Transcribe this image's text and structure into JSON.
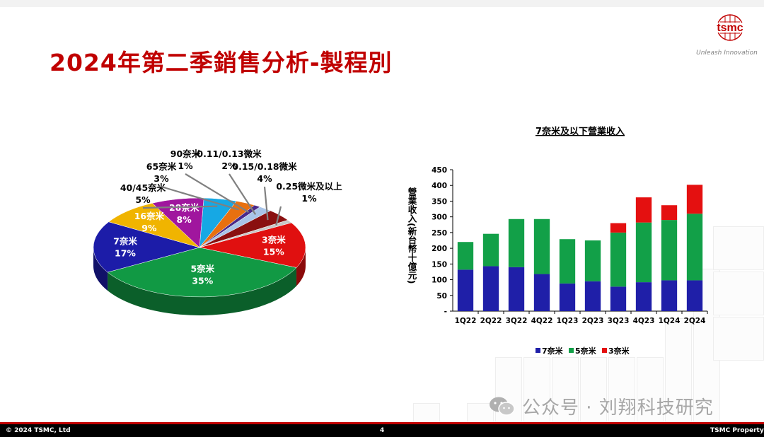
{
  "slide": {
    "title": "2024年第二季銷售分析-製程別",
    "logo_text": "tsmc",
    "tagline": "Unleash Innovation",
    "footer_left": "© 2024 TSMC, Ltd",
    "footer_page": "4",
    "footer_right": "TSMC Property",
    "watermark": "公众号 · 刘翔科技研究"
  },
  "colors": {
    "title_red": "#c00000",
    "n7": "#1f1fa8",
    "n5": "#12a048",
    "n3": "#e41010"
  },
  "chart_data": [
    {
      "type": "pie",
      "slices": [
        {
          "label": "3奈米",
          "value": 15,
          "pct": "15%",
          "color": "#e01010"
        },
        {
          "label": "5奈米",
          "value": 35,
          "pct": "35%",
          "color": "#119944"
        },
        {
          "label": "7奈米",
          "value": 17,
          "pct": "17%",
          "color": "#1c1ca8"
        },
        {
          "label": "16奈米",
          "value": 9,
          "pct": "9%",
          "color": "#f0b400"
        },
        {
          "label": "28奈米",
          "value": 8,
          "pct": "8%",
          "color": "#a0169e"
        },
        {
          "label": "40/45奈米",
          "value": 5,
          "pct": "5%",
          "color": "#16a8e4"
        },
        {
          "label": "65奈米",
          "value": 3,
          "pct": "3%",
          "color": "#e87010"
        },
        {
          "label": "90奈米",
          "value": 1,
          "pct": "1%",
          "color": "#4a2a8a"
        },
        {
          "label": "0.11/0.13微米",
          "value": 2,
          "pct": "2%",
          "color": "#a8c4e8"
        },
        {
          "label": "0.15/0.18微米",
          "value": 4,
          "pct": "4%",
          "color": "#8a1010"
        },
        {
          "label": "0.25微米及以上",
          "value": 1,
          "pct": "1%",
          "color": "#c8c8c8"
        }
      ]
    },
    {
      "type": "bar",
      "stacked": true,
      "title": "7奈米及以下營業收入",
      "ylabel": "營業收入(新台幣十億元)",
      "ylim": [
        0,
        450
      ],
      "yticks": [
        "-",
        "50",
        "100",
        "150",
        "200",
        "250",
        "300",
        "350",
        "400",
        "450"
      ],
      "categories": [
        "1Q22",
        "2Q22",
        "3Q22",
        "4Q22",
        "1Q23",
        "2Q23",
        "3Q23",
        "4Q23",
        "1Q24",
        "2Q24"
      ],
      "series": [
        {
          "name": "7奈米",
          "color": "#1f1fa8",
          "values": [
            132,
            143,
            140,
            118,
            88,
            95,
            78,
            92,
            98,
            98
          ]
        },
        {
          "name": "5奈米",
          "color": "#12a048",
          "values": [
            88,
            103,
            153,
            175,
            141,
            130,
            172,
            190,
            192,
            212
          ]
        },
        {
          "name": "3奈米",
          "color": "#e41010",
          "values": [
            0,
            0,
            0,
            0,
            0,
            0,
            30,
            80,
            47,
            92
          ]
        }
      ]
    }
  ]
}
